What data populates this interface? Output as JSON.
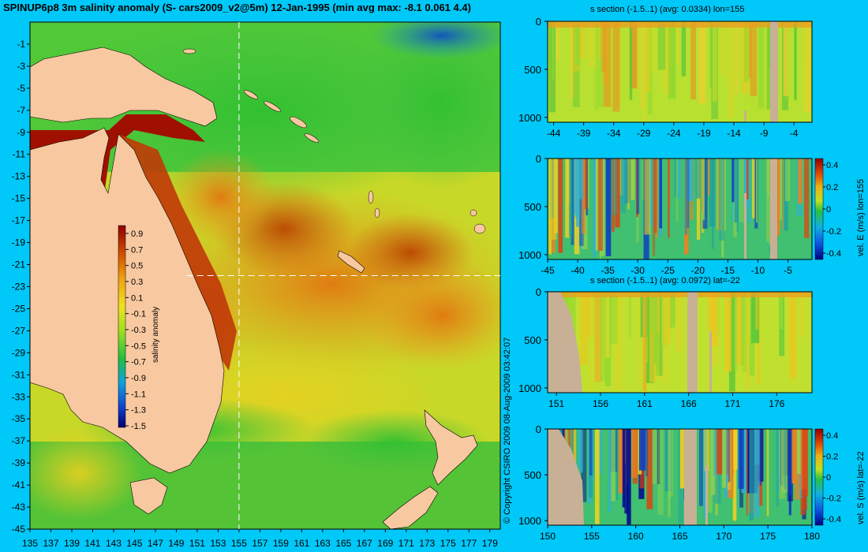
{
  "title": "SPINUP6p8 3m salinity anomaly (S- cars2009_v2@5m) 12-Jan-1995 (min avg max: -8.1 0.061 4.4)",
  "copyright": "© Copyright CSIRO 2009   08-Aug-2009 03:42:07",
  "colors": {
    "background": "#00c8f8",
    "land": "#f8c8a0",
    "section_land": "#c8b096",
    "guide_line": "#ffffff"
  },
  "chart_data": [
    {
      "type": "heatmap",
      "id": "map",
      "title": "",
      "xticks": [
        135,
        137,
        139,
        141,
        143,
        145,
        147,
        149,
        151,
        153,
        155,
        157,
        159,
        161,
        163,
        165,
        167,
        169,
        171,
        173,
        175,
        177,
        179
      ],
      "yticks": [
        -1,
        -3,
        -5,
        -7,
        -9,
        -11,
        -13,
        -15,
        -17,
        -19,
        -21,
        -23,
        -25,
        -27,
        -29,
        -31,
        -33,
        -35,
        -37,
        -39,
        -41,
        -43,
        -45
      ],
      "xlim": [
        135,
        180
      ],
      "ylim": [
        -45,
        1
      ],
      "guide_lon": 155,
      "guide_lat": -22,
      "colorbar": {
        "label": "salinity anomaly",
        "ticks": [
          "0.9",
          "0.7",
          "0.5",
          "0.3",
          "0.1",
          "-0.1",
          "-0.3",
          "-0.5",
          "-0.7",
          "-0.9",
          "-1.1",
          "-1.3",
          "-1.5"
        ],
        "range": [
          -1.5,
          1.0
        ]
      }
    },
    {
      "type": "heatmap",
      "id": "lon-s",
      "title": "s section (-1.5..1) (avg: 0.0334) lon=155",
      "xticks": [
        "-44",
        "-39",
        "-34",
        "-29",
        "-24",
        "-19",
        "-14",
        "-9",
        "-4"
      ],
      "yticks": [
        "0",
        "500",
        "1000"
      ],
      "xlim": [
        -45,
        -1
      ],
      "ylim": [
        0,
        1050
      ]
    },
    {
      "type": "heatmap",
      "id": "lon-u",
      "title": "",
      "xticks": [
        "-45",
        "-40",
        "-35",
        "-30",
        "-25",
        "-20",
        "-15",
        "-10",
        "-5"
      ],
      "yticks": [
        "0",
        "500",
        "1000"
      ],
      "xlim": [
        -45,
        -1
      ],
      "ylim": [
        0,
        1050
      ],
      "colorbar": {
        "label": "vel. E (m/s) lon=155",
        "ticks": [
          "0.4",
          "0.2",
          "0",
          "-0.2",
          "-0.4"
        ]
      }
    },
    {
      "type": "heatmap",
      "id": "lat-s",
      "title": "s section (-1.5..1) (avg: 0.0972) lat=-22",
      "xticks": [
        "151",
        "156",
        "161",
        "166",
        "171",
        "176"
      ],
      "yticks": [
        "0",
        "500",
        "1000"
      ],
      "xlim": [
        150,
        180
      ],
      "ylim": [
        0,
        1050
      ]
    },
    {
      "type": "heatmap",
      "id": "lat-v",
      "title": "",
      "xticks": [
        "150",
        "155",
        "160",
        "165",
        "170",
        "175",
        "180"
      ],
      "yticks": [
        "0",
        "500",
        "1000"
      ],
      "xlim": [
        150,
        180
      ],
      "ylim": [
        0,
        1050
      ],
      "colorbar": {
        "label": "vel. S (m/s) lat=-22",
        "ticks": [
          "0.4",
          "0.2",
          "0",
          "-0.2",
          "-0.4"
        ]
      }
    }
  ]
}
